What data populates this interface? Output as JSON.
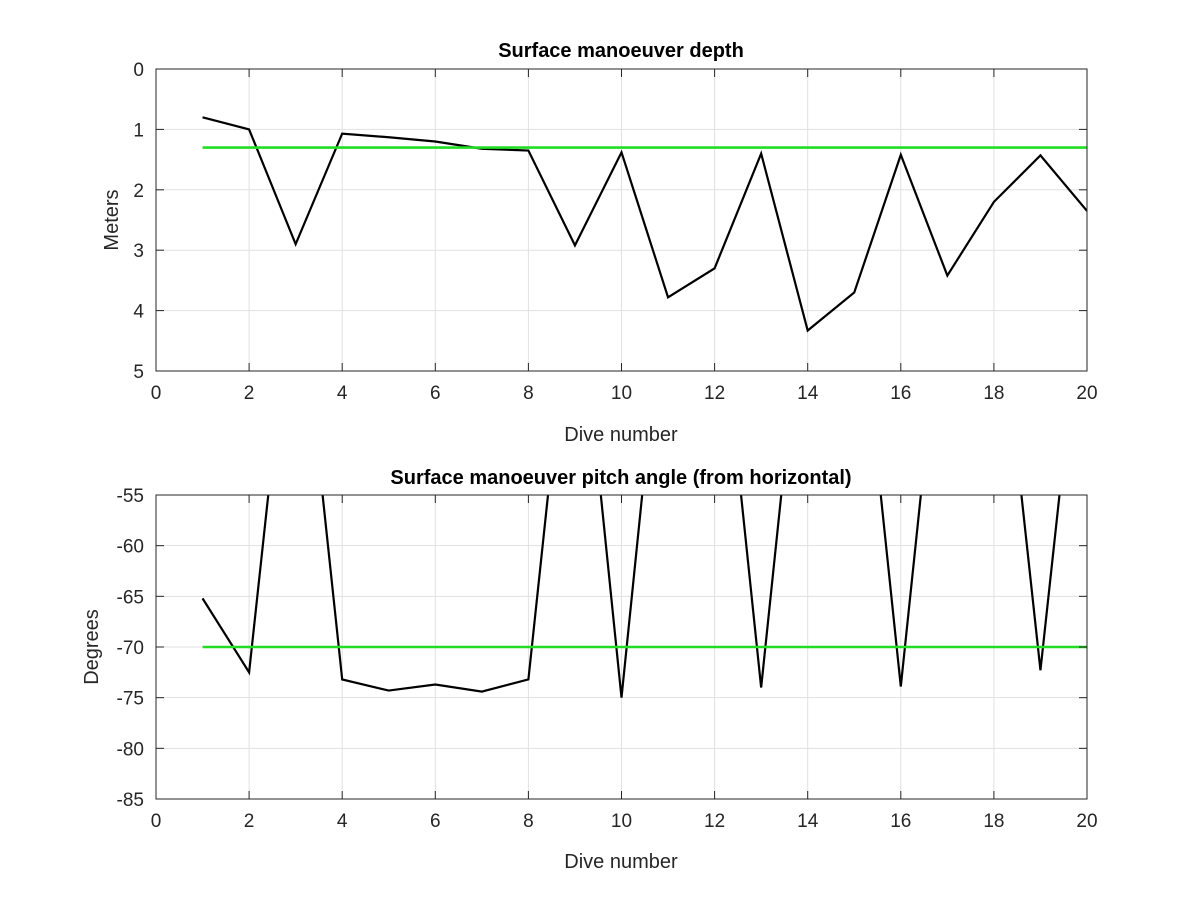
{
  "chart_data": [
    {
      "type": "line",
      "title": "Surface manoeuver depth",
      "xlabel": "Dive number",
      "ylabel": "Meters",
      "xlim": [
        0,
        20
      ],
      "ylim": [
        0,
        5
      ],
      "y_reversed": true,
      "grid": true,
      "xticks": [
        0,
        2,
        4,
        6,
        8,
        10,
        12,
        14,
        16,
        18,
        20
      ],
      "yticks": [
        0,
        1,
        2,
        3,
        4,
        5
      ],
      "xtick_labels": [
        "0",
        "2",
        "4",
        "6",
        "8",
        "10",
        "12",
        "14",
        "16",
        "18",
        "20"
      ],
      "ytick_labels": [
        "0",
        "1",
        "2",
        "3",
        "4",
        "5"
      ],
      "series": [
        {
          "color": "#000000",
          "x": [
            1,
            2,
            3,
            4,
            5,
            6,
            7,
            8,
            9,
            10,
            11,
            12,
            13,
            14,
            15,
            16,
            17,
            18,
            19,
            20
          ],
          "y": [
            0.8,
            1.0,
            2.9,
            1.07,
            1.13,
            1.2,
            1.32,
            1.35,
            2.92,
            1.38,
            3.78,
            3.3,
            1.4,
            4.33,
            3.7,
            1.42,
            3.42,
            2.2,
            1.43,
            2.35
          ]
        },
        {
          "color": "#22dd22",
          "x": [
            1,
            20
          ],
          "y": [
            1.3,
            1.3
          ]
        }
      ]
    },
    {
      "type": "line",
      "title": "Surface manoeuver pitch angle (from horizontal)",
      "xlabel": "Dive number",
      "ylabel": "Degrees",
      "xlim": [
        0,
        20
      ],
      "ylim": [
        -85,
        -55
      ],
      "grid": true,
      "xticks": [
        0,
        2,
        4,
        6,
        8,
        10,
        12,
        14,
        16,
        18,
        20
      ],
      "yticks": [
        -55,
        -60,
        -65,
        -70,
        -75,
        -80,
        -85
      ],
      "xtick_labels": [
        "0",
        "2",
        "4",
        "6",
        "8",
        "10",
        "12",
        "14",
        "16",
        "18",
        "20"
      ],
      "ytick_labels": [
        "-55",
        "-60",
        "-65",
        "-70",
        "-75",
        "-80",
        "-85"
      ],
      "series": [
        {
          "color": "#000000",
          "x": [
            1,
            2,
            3,
            4,
            5,
            6,
            7,
            8,
            9,
            10,
            11,
            12,
            13,
            14,
            15,
            16,
            17,
            18,
            19,
            20
          ],
          "y": [
            -65.2,
            -72.5,
            -30,
            -73.2,
            -74.3,
            -73.7,
            -74.4,
            -73.2,
            -30,
            -75.0,
            -30,
            -30,
            -74.0,
            -30,
            -30,
            -73.9,
            -30,
            -30,
            -72.3,
            -30
          ]
        },
        {
          "color": "#22dd22",
          "x": [
            1,
            20
          ],
          "y": [
            -70,
            -70
          ]
        }
      ]
    }
  ]
}
